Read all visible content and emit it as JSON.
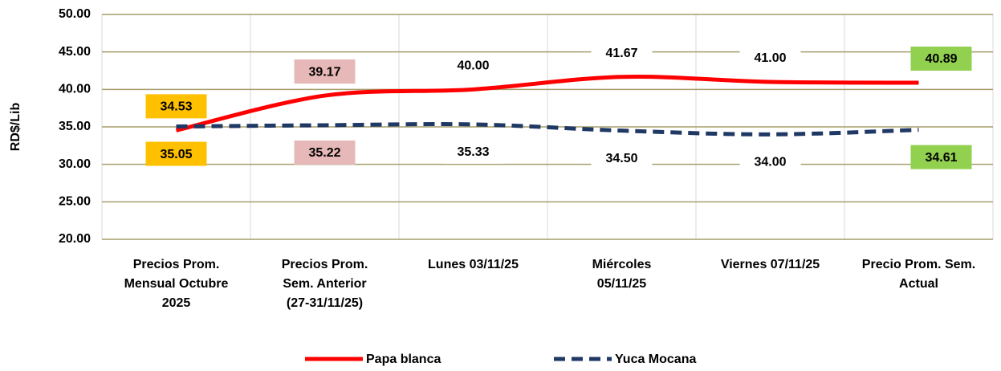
{
  "chart_data": {
    "type": "line",
    "y_label": "RD$/Lib",
    "categories": [
      "Precios Prom.\nMensual Octubre\n2025",
      "Precios Prom.\nSem. Anterior\n(27-31/11/25)",
      "Lunes     03/11/25",
      "Miércoles\n05/11/25",
      "Viernes 07/11/25",
      "Precio Prom. Sem.\nActual"
    ],
    "series": [
      {
        "name": "Papa blanca",
        "color": "#ff0000",
        "values": [
          34.53,
          39.17,
          40,
          41.67,
          41,
          40.89
        ],
        "value_labels": [
          "34.53",
          "39.17",
          "40.00",
          "41.67",
          "41.00",
          "40.89"
        ]
      },
      {
        "name": "Yuca Mocana",
        "color": "#1f3864",
        "values": [
          35.05,
          35.22,
          35.33,
          34.5,
          34,
          34.61
        ],
        "value_labels": [
          "35.05",
          "35.22",
          "35.33",
          "34.50",
          "34.00",
          "34.61"
        ]
      }
    ],
    "ylim": [
      20,
      50
    ],
    "yticks": [
      {
        "value": 20,
        "label": "20.00"
      },
      {
        "value": 25,
        "label": "25.00"
      },
      {
        "value": 30,
        "label": "30.00"
      },
      {
        "value": 35,
        "label": "35.00"
      },
      {
        "value": 40,
        "label": "40.00"
      },
      {
        "value": 45,
        "label": "45.00"
      },
      {
        "value": 50,
        "label": "50.00"
      }
    ],
    "grid": true,
    "smooth": true,
    "legend": "bottom"
  }
}
